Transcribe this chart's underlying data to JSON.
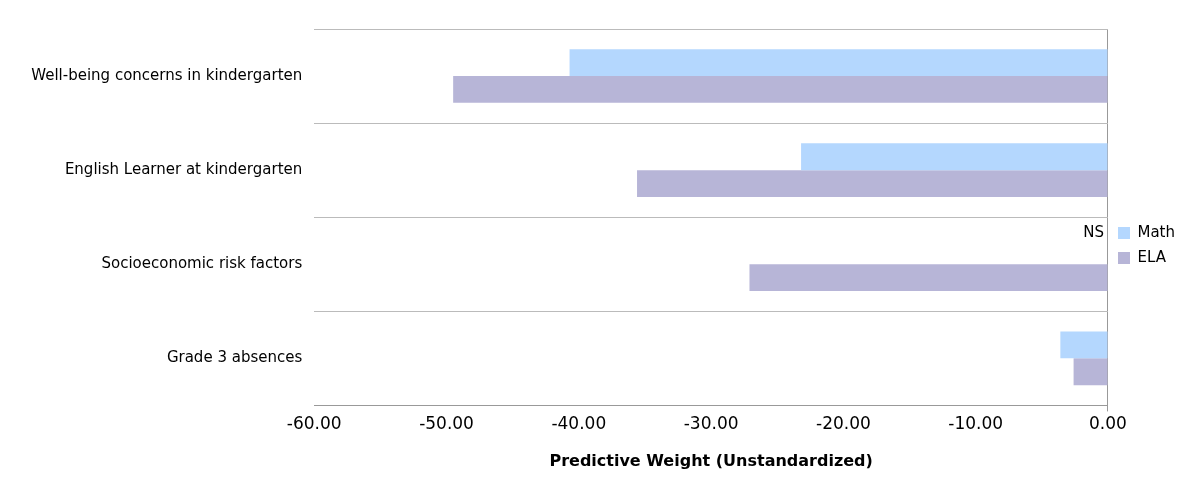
{
  "chart_data": {
    "type": "bar",
    "orientation": "horizontal",
    "xlabel": "Predictive Weight (Unstandardized)",
    "categories": [
      "Well-being concerns in kindergarten",
      "English Learner at kindergarten",
      "Socioeconomic risk factors",
      "Grade 3 absences"
    ],
    "series": [
      {
        "name": "Math",
        "color": "#b4d7fe",
        "values": [
          -40.7,
          -23.2,
          null,
          -3.6
        ]
      },
      {
        "name": "ELA",
        "color": "#b7b5d7",
        "values": [
          -49.5,
          -35.6,
          -27.1,
          -2.6
        ]
      }
    ],
    "xlim": [
      -60,
      0
    ],
    "xticks": [
      {
        "value": -60,
        "label": "-60.00"
      },
      {
        "value": -50,
        "label": "-50.00"
      },
      {
        "value": -40,
        "label": "-40.00"
      },
      {
        "value": -30,
        "label": "-30.00"
      },
      {
        "value": -20,
        "label": "-20.00"
      },
      {
        "value": -10,
        "label": "-10.00"
      },
      {
        "value": 0,
        "label": "0.00"
      }
    ],
    "grid": "y",
    "legend": "right",
    "annotations": [
      {
        "text": "NS",
        "x": 0,
        "y": "Socioeconomic risk factors"
      }
    ]
  }
}
